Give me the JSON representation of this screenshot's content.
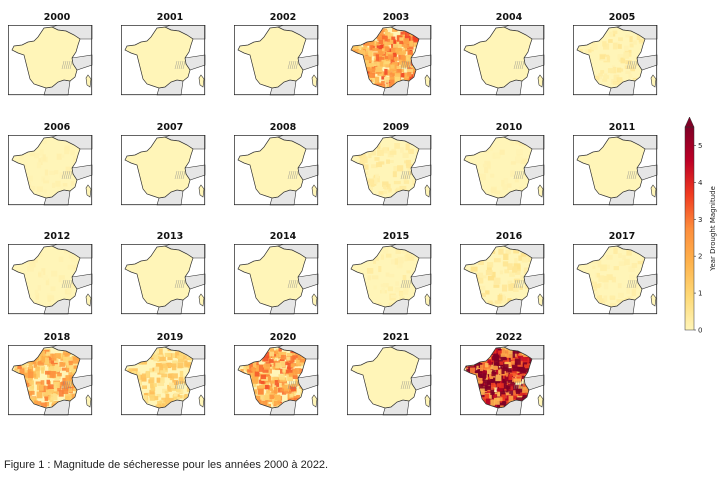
{
  "chart_data": {
    "type": "heatmap",
    "panels": [
      {
        "year": "2000",
        "magnitude": 0.0
      },
      {
        "year": "2001",
        "magnitude": 0.0
      },
      {
        "year": "2002",
        "magnitude": 0.0
      },
      {
        "year": "2003",
        "magnitude": 2.2
      },
      {
        "year": "2004",
        "magnitude": 0.0
      },
      {
        "year": "2005",
        "magnitude": 0.3
      },
      {
        "year": "2006",
        "magnitude": 0.1
      },
      {
        "year": "2007",
        "magnitude": 0.0
      },
      {
        "year": "2008",
        "magnitude": 0.0
      },
      {
        "year": "2009",
        "magnitude": 0.3
      },
      {
        "year": "2010",
        "magnitude": 0.1
      },
      {
        "year": "2011",
        "magnitude": 0.0
      },
      {
        "year": "2012",
        "magnitude": 0.1
      },
      {
        "year": "2013",
        "magnitude": 0.0
      },
      {
        "year": "2014",
        "magnitude": 0.0
      },
      {
        "year": "2015",
        "magnitude": 0.2
      },
      {
        "year": "2016",
        "magnitude": 0.4
      },
      {
        "year": "2017",
        "magnitude": 0.2
      },
      {
        "year": "2018",
        "magnitude": 1.8
      },
      {
        "year": "2019",
        "magnitude": 1.0
      },
      {
        "year": "2020",
        "magnitude": 2.0
      },
      {
        "year": "2021",
        "magnitude": 0.0
      },
      {
        "year": "2022",
        "magnitude": 4.5
      }
    ],
    "colorbar": {
      "label": "Year Drought Magnitude",
      "ticks": [
        "0",
        "1",
        "2",
        "3",
        "4",
        "5"
      ],
      "range": [
        0,
        5.5
      ],
      "colors": [
        "#fff5b8",
        "#fed976",
        "#feb24c",
        "#fd8d3c",
        "#f03b20",
        "#bd0026",
        "#800026"
      ]
    }
  },
  "caption": "Figure 1 : Magnitude de sécheresse pour les années 2000 à 2022."
}
